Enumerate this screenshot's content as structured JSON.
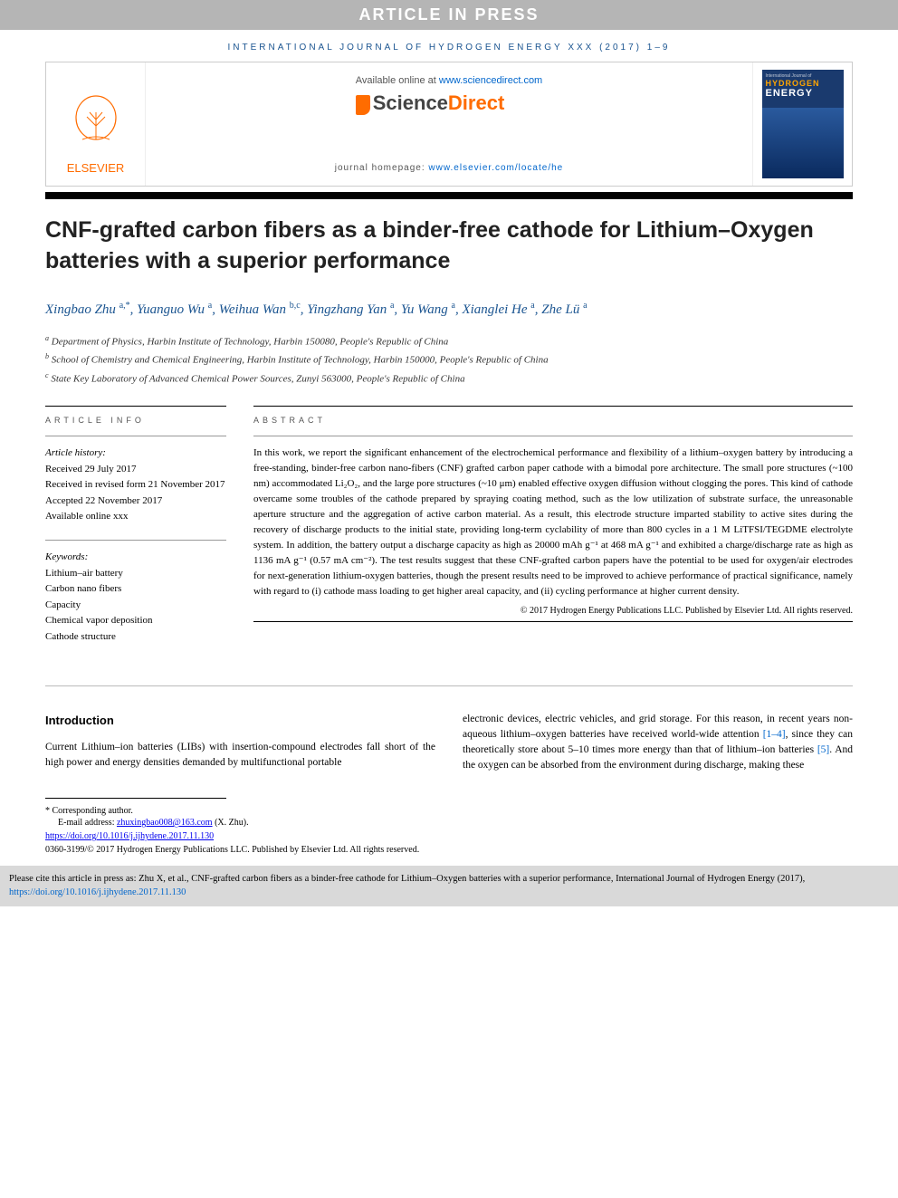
{
  "banner": "ARTICLE IN PRESS",
  "journal_ref": "INTERNATIONAL JOURNAL OF HYDROGEN ENERGY XXX (2017) 1–9",
  "header": {
    "available_prefix": "Available online at ",
    "available_link": "www.sciencedirect.com",
    "sciencedirect": {
      "science": "Science",
      "direct": "Direct"
    },
    "homepage_prefix": "journal homepage: ",
    "homepage_link": "www.elsevier.com/locate/he",
    "elsevier": "ELSEVIER",
    "cover": {
      "line1": "HYDROGEN",
      "line2": "ENERGY"
    }
  },
  "title": "CNF-grafted carbon fibers as a binder-free cathode for Lithium–Oxygen batteries with a superior performance",
  "authors_html": "Xingbao Zhu <sup>a,*</sup>, Yuanguo Wu <sup>a</sup>, Weihua Wan <sup>b,c</sup>, Yingzhang Yan <sup>a</sup>, Yu Wang <sup>a</sup>, Xianglei He <sup>a</sup>, Zhe Lü <sup>a</sup>",
  "affiliations": {
    "a": "Department of Physics, Harbin Institute of Technology, Harbin 150080, People's Republic of China",
    "b": "School of Chemistry and Chemical Engineering, Harbin Institute of Technology, Harbin 150000, People's Republic of China",
    "c": "State Key Laboratory of Advanced Chemical Power Sources, Zunyi 563000, People's Republic of China"
  },
  "info": {
    "heading": "ARTICLE INFO",
    "history_head": "Article history:",
    "received": "Received 29 July 2017",
    "revised": "Received in revised form 21 November 2017",
    "accepted": "Accepted 22 November 2017",
    "online": "Available online xxx",
    "keywords_head": "Keywords:",
    "keywords": [
      "Lithium–air battery",
      "Carbon nano fibers",
      "Capacity",
      "Chemical vapor deposition",
      "Cathode structure"
    ]
  },
  "abstract": {
    "heading": "ABSTRACT",
    "body": "In this work, we report the significant enhancement of the electrochemical performance and flexibility of a lithium–oxygen battery by introducing a free-standing, binder-free carbon nano-fibers (CNF) grafted carbon paper cathode with a bimodal pore architecture. The small pore structures (~100 nm) accommodated Li₂O₂, and the large pore structures (~10 μm) enabled effective oxygen diffusion without clogging the pores. This kind of cathode overcame some troubles of the cathode prepared by spraying coating method, such as the low utilization of substrate surface, the unreasonable aperture structure and the aggregation of active carbon material. As a result, this electrode structure imparted stability to active sites during the recovery of discharge products to the initial state, providing long-term cyclability of more than 800 cycles in a 1 M LiTFSI/TEGDME electrolyte system. In addition, the battery output a discharge capacity as high as 20000 mAh g⁻¹ at 468 mA g⁻¹ and exhibited a charge/discharge rate as high as 1136 mA g⁻¹ (0.57 mA cm⁻²). The test results suggest that these CNF-grafted carbon papers have the potential to be used for oxygen/air electrodes for next-generation lithium-oxygen batteries, though the present results need to be improved to achieve performance of practical significance, namely with regard to (i) cathode mass loading to get higher areal capacity, and (ii) cycling performance at higher current density.",
    "copyright": "© 2017 Hydrogen Energy Publications LLC. Published by Elsevier Ltd. All rights reserved."
  },
  "intro": {
    "heading": "Introduction",
    "col1": "Current Lithium–ion batteries (LIBs) with insertion-compound electrodes fall short of the high power and energy densities demanded by multifunctional portable",
    "col2_pre": "electronic devices, electric vehicles, and grid storage. For this reason, in recent years non-aqueous lithium–oxygen batteries have received world-wide attention ",
    "col2_link1": "[1–4]",
    "col2_mid": ", since they can theoretically store about 5–10 times more energy than that of lithium–ion batteries ",
    "col2_link2": "[5]",
    "col2_post": ". And the oxygen can be absorbed from the environment during discharge, making these"
  },
  "footnotes": {
    "corr": "* Corresponding author.",
    "email_label": "E-mail address: ",
    "email": "zhuxingbao008@163.com",
    "email_suffix": " (X. Zhu).",
    "doi": "https://doi.org/10.1016/j.ijhydene.2017.11.130",
    "copyright": "0360-3199/© 2017 Hydrogen Energy Publications LLC. Published by Elsevier Ltd. All rights reserved."
  },
  "cite": {
    "prefix": "Please cite this article in press as: Zhu X, et al., CNF-grafted carbon fibers as a binder-free cathode for Lithium–Oxygen batteries with a superior performance, International Journal of Hydrogen Energy (2017), ",
    "link": "https://doi.org/10.1016/j.ijhydene.2017.11.130"
  },
  "colors": {
    "banner_bg": "#b5b5b5",
    "link": "#0066cc",
    "elsevier_orange": "#ff6c00",
    "journal_blue": "#1a5490"
  }
}
